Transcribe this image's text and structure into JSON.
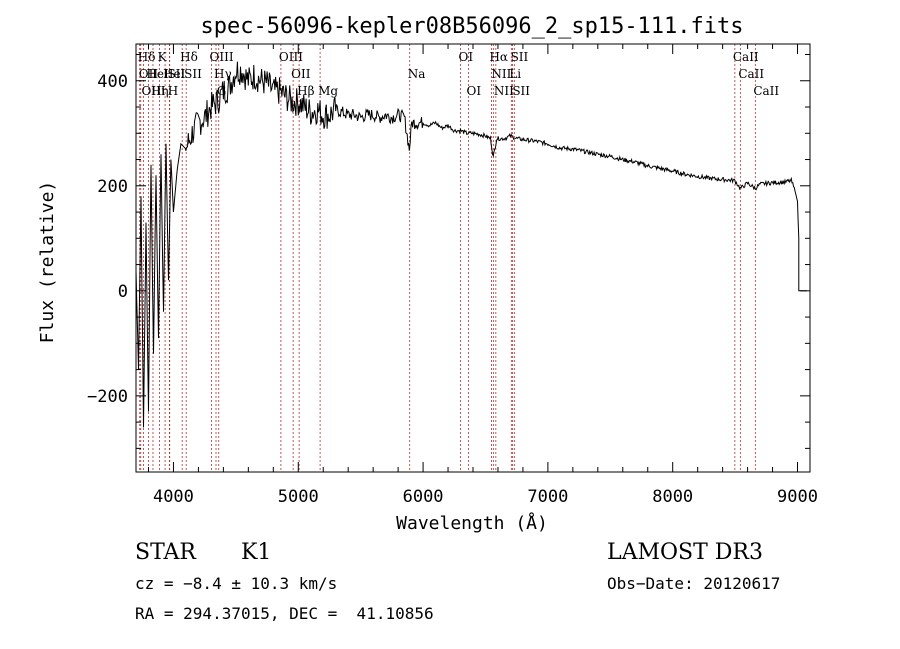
{
  "chart_data": {
    "type": "line",
    "title": "spec-56096-kepler08B56096_2_sp15-111.fits",
    "xlabel": "Wavelength (Å)",
    "ylabel": "Flux (relative)",
    "xlim": [
      3700,
      9100
    ],
    "ylim": [
      -345,
      470
    ],
    "xticks": [
      4000,
      5000,
      6000,
      7000,
      8000,
      9000
    ],
    "yticks": [
      -200,
      0,
      200,
      400
    ],
    "ytick_labels": [
      "−200",
      "0",
      "200",
      "400"
    ],
    "series": [
      {
        "name": "flux",
        "x": [
          3700,
          3720,
          3740,
          3760,
          3780,
          3800,
          3820,
          3840,
          3860,
          3880,
          3900,
          3920,
          3940,
          3960,
          3980,
          4000,
          4030,
          4060,
          4100,
          4150,
          4200,
          4250,
          4300,
          4350,
          4400,
          4450,
          4500,
          4550,
          4600,
          4650,
          4700,
          4750,
          4800,
          4850,
          4900,
          4950,
          5000,
          5050,
          5100,
          5150,
          5200,
          5250,
          5300,
          5350,
          5400,
          5450,
          5500,
          5550,
          5600,
          5650,
          5700,
          5750,
          5800,
          5850,
          5890,
          5910,
          5950,
          6000,
          6050,
          6100,
          6150,
          6200,
          6250,
          6300,
          6350,
          6400,
          6450,
          6500,
          6540,
          6563,
          6590,
          6650,
          6700,
          6750,
          6800,
          6900,
          7000,
          7100,
          7200,
          7300,
          7400,
          7500,
          7600,
          7700,
          7800,
          7900,
          8000,
          8100,
          8200,
          8300,
          8400,
          8498,
          8542,
          8600,
          8662,
          8700,
          8800,
          8900,
          8950,
          8980,
          9000,
          9010,
          9010
        ],
        "values": [
          40,
          -150,
          180,
          -260,
          130,
          -230,
          240,
          -120,
          220,
          -90,
          260,
          -40,
          280,
          20,
          250,
          150,
          230,
          280,
          270,
          300,
          320,
          330,
          350,
          360,
          380,
          390,
          420,
          420,
          400,
          410,
          400,
          395,
          380,
          380,
          370,
          360,
          360,
          350,
          340,
          345,
          335,
          335,
          345,
          340,
          335,
          335,
          330,
          335,
          335,
          330,
          335,
          330,
          335,
          330,
          270,
          320,
          320,
          320,
          315,
          320,
          310,
          315,
          305,
          305,
          300,
          300,
          298,
          295,
          290,
          255,
          290,
          290,
          295,
          290,
          288,
          285,
          280,
          272,
          270,
          265,
          260,
          256,
          250,
          245,
          238,
          233,
          228,
          222,
          218,
          214,
          212,
          210,
          195,
          205,
          195,
          203,
          206,
          207,
          210,
          190,
          170,
          100,
          0
        ]
      }
    ],
    "lines": [
      {
        "name": "Hδ",
        "x": 3730,
        "row": 1
      },
      {
        "name": "OII",
        "x": 3738,
        "row": 2
      },
      {
        "name": "OIII",
        "x": 3760,
        "row": 3
      },
      {
        "name": "HeI",
        "x": 3800,
        "row": 2
      },
      {
        "name": "Hη",
        "x": 3836,
        "row": 3
      },
      {
        "name": "K",
        "x": 3889,
        "row": 1
      },
      {
        "name": "HeI",
        "x": 3933,
        "row": 2
      },
      {
        "name": "SII",
        "x": 3968,
        "row": 2
      },
      {
        "name": "H",
        "x": 3970,
        "row": 3
      },
      {
        "name": "Hδ",
        "x": 4070,
        "row": 1
      },
      {
        "name": "SII",
        "x": 4102,
        "row": 2
      },
      {
        "name": "OIII",
        "x": 4305,
        "row": 1
      },
      {
        "name": "Hγ",
        "x": 4341,
        "row": 2
      },
      {
        "name": "G",
        "x": 4363,
        "row": 3
      },
      {
        "name": "OIII",
        "x": 4861,
        "row": 1
      },
      {
        "name": "OII",
        "x": 4959,
        "row": 2
      },
      {
        "name": "Hβ",
        "x": 5007,
        "row": 3
      },
      {
        "name": "Mg",
        "x": 5175,
        "row": 3
      },
      {
        "name": "Na",
        "x": 5893,
        "row": 2
      },
      {
        "name": "OI",
        "x": 6300,
        "row": 1
      },
      {
        "name": "OI",
        "x": 6364,
        "row": 3
      },
      {
        "name": "Hα",
        "x": 6548,
        "row": 1
      },
      {
        "name": "NII",
        "x": 6563,
        "row": 2
      },
      {
        "name": "NII",
        "x": 6583,
        "row": 3
      },
      {
        "name": "SII",
        "x": 6717,
        "row": 1
      },
      {
        "name": "Li",
        "x": 6707,
        "row": 2
      },
      {
        "name": "SII",
        "x": 6731,
        "row": 3
      },
      {
        "name": "CaII",
        "x": 8498,
        "row": 1
      },
      {
        "name": "CaII",
        "x": 8542,
        "row": 2
      },
      {
        "name": "CaII",
        "x": 8662,
        "row": 3
      }
    ]
  },
  "info": {
    "object_class": "STAR",
    "subclass": "K1",
    "survey": "LAMOST DR3",
    "cz": "cz = −8.4 ± 10.3 km/s",
    "obs_date": "Obs−Date: 20120617",
    "coords": "RA = 294.37015, DEC =  41.10856"
  },
  "colors": {
    "axis": "#000000",
    "spectrum": "#000000",
    "line_marker": "#b03030"
  }
}
